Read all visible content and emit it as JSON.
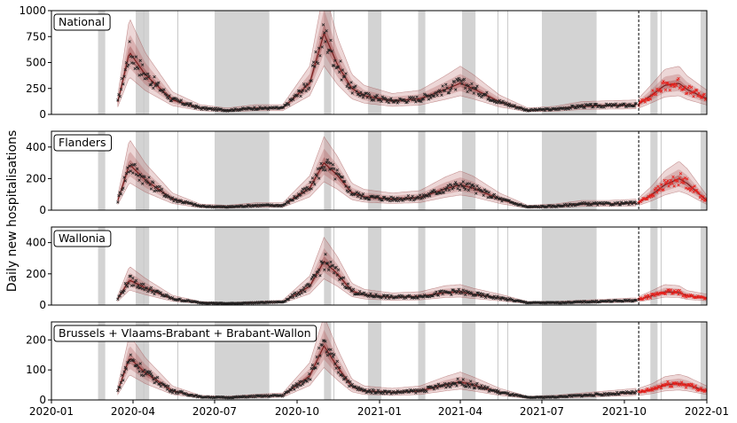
{
  "chart_data": {
    "type": "line",
    "ylabel": "Daily new hospitalisations",
    "x_ticks": [
      "2020-01",
      "2020-04",
      "2020-07",
      "2020-10",
      "2021-01",
      "2021-04",
      "2021-07",
      "2021-10",
      "2022-01"
    ],
    "x_range": [
      "2020-01-01",
      "2022-01-01"
    ],
    "vertical_line_date": "2021-10-17",
    "shaded_periods": [
      [
        "2020-02-22",
        "2020-03-01"
      ],
      [
        "2020-04-04",
        "2020-04-19"
      ],
      [
        "2020-07-01",
        "2020-08-31"
      ],
      [
        "2020-10-31",
        "2020-11-08"
      ],
      [
        "2020-12-19",
        "2021-01-03"
      ],
      [
        "2021-02-13",
        "2021-02-21"
      ],
      [
        "2021-04-03",
        "2021-04-18"
      ],
      [
        "2021-07-01",
        "2021-08-31"
      ],
      [
        "2021-10-30",
        "2021-11-07"
      ],
      [
        "2021-12-25",
        "2022-01-01"
      ]
    ],
    "single_days": [
      "2020-04-13",
      "2020-05-21",
      "2020-11-11",
      "2021-05-13",
      "2021-05-24",
      "2021-11-11"
    ],
    "panels": [
      {
        "label": "National",
        "ylim": [
          0,
          1000
        ],
        "yticks": [
          0,
          250,
          500,
          750,
          1000
        ],
        "series": [
          {
            "x": [
              "2020-03-15",
              "2020-03-28",
              "2020-04-15",
              "2020-05-15",
              "2020-06-15",
              "2020-07-15",
              "2020-08-15",
              "2020-09-15",
              "2020-10-15",
              "2020-10-31",
              "2020-11-15",
              "2020-12-01",
              "2020-12-15",
              "2021-01-15",
              "2021-02-15",
              "2021-03-15",
              "2021-04-01",
              "2021-04-15",
              "2021-05-15",
              "2021-06-15",
              "2021-07-15",
              "2021-08-15",
              "2021-09-15",
              "2021-10-15"
            ],
            "y": [
              120,
              600,
              380,
              140,
              60,
              40,
              60,
              60,
              300,
              780,
              480,
              250,
              180,
              130,
              150,
              240,
              300,
              250,
              120,
              40,
              50,
              80,
              85,
              90
            ]
          },
          {
            "x": [
              "2021-10-17",
              "2021-11-01",
              "2021-11-15",
              "2021-12-01",
              "2021-12-10",
              "2022-01-01"
            ],
            "y": [
              100,
              190,
              280,
              300,
              240,
              150
            ]
          }
        ]
      },
      {
        "label": "Flanders",
        "ylim": [
          0,
          500
        ],
        "yticks": [
          0,
          200,
          400
        ],
        "series": [
          {
            "x": [
              "2020-03-15",
              "2020-03-28",
              "2020-04-15",
              "2020-05-15",
              "2020-06-15",
              "2020-07-15",
              "2020-08-15",
              "2020-09-15",
              "2020-10-15",
              "2020-10-31",
              "2020-11-15",
              "2020-12-01",
              "2020-12-15",
              "2021-01-15",
              "2021-02-15",
              "2021-03-15",
              "2021-04-01",
              "2021-04-15",
              "2021-05-15",
              "2021-06-15",
              "2021-07-15",
              "2021-08-15",
              "2021-09-15",
              "2021-10-15"
            ],
            "y": [
              60,
              290,
              190,
              70,
              25,
              20,
              30,
              30,
              140,
              300,
              220,
              110,
              85,
              70,
              80,
              135,
              160,
              140,
              70,
              20,
              25,
              40,
              40,
              45
            ]
          },
          {
            "x": [
              "2021-10-17",
              "2021-11-01",
              "2021-11-15",
              "2021-12-01",
              "2021-12-10",
              "2022-01-01"
            ],
            "y": [
              50,
              100,
              160,
              200,
              170,
              60
            ]
          }
        ]
      },
      {
        "label": "Wallonia",
        "ylim": [
          0,
          500
        ],
        "yticks": [
          0,
          200,
          400
        ],
        "series": [
          {
            "x": [
              "2020-03-15",
              "2020-03-28",
              "2020-04-15",
              "2020-05-15",
              "2020-06-15",
              "2020-07-15",
              "2020-08-15",
              "2020-09-15",
              "2020-10-15",
              "2020-10-31",
              "2020-11-15",
              "2020-12-01",
              "2020-12-15",
              "2021-01-15",
              "2021-02-15",
              "2021-03-15",
              "2021-04-01",
              "2021-04-15",
              "2021-05-15",
              "2021-06-15",
              "2021-07-15",
              "2021-08-15",
              "2021-09-15",
              "2021-10-15"
            ],
            "y": [
              40,
              160,
              110,
              40,
              15,
              10,
              15,
              20,
              120,
              280,
              200,
              90,
              65,
              50,
              55,
              80,
              85,
              70,
              45,
              15,
              15,
              20,
              25,
              30
            ]
          },
          {
            "x": [
              "2021-10-17",
              "2021-11-01",
              "2021-11-15",
              "2021-12-01",
              "2021-12-10",
              "2022-01-01"
            ],
            "y": [
              35,
              60,
              85,
              80,
              60,
              45
            ]
          }
        ]
      },
      {
        "label": "Brussels + Vlaams-Brabant + Brabant-Wallon",
        "ylim": [
          0,
          260
        ],
        "yticks": [
          0,
          100,
          200
        ],
        "series": [
          {
            "x": [
              "2020-03-15",
              "2020-03-28",
              "2020-04-15",
              "2020-05-15",
              "2020-06-15",
              "2020-07-15",
              "2020-08-15",
              "2020-09-15",
              "2020-10-15",
              "2020-10-31",
              "2020-11-15",
              "2020-12-01",
              "2020-12-15",
              "2021-01-15",
              "2021-02-15",
              "2021-03-15",
              "2021-04-01",
              "2021-04-15",
              "2021-05-15",
              "2021-06-15",
              "2021-07-15",
              "2021-08-15",
              "2021-09-15",
              "2021-10-15"
            ],
            "y": [
              30,
              140,
              90,
              30,
              10,
              8,
              12,
              15,
              80,
              180,
              110,
              45,
              30,
              25,
              30,
              50,
              60,
              50,
              25,
              8,
              10,
              15,
              20,
              25
            ]
          },
          {
            "x": [
              "2021-10-17",
              "2021-11-01",
              "2021-11-15",
              "2021-12-01",
              "2021-12-10",
              "2022-01-01"
            ],
            "y": [
              25,
              35,
              50,
              55,
              50,
              30
            ]
          }
        ]
      }
    ]
  }
}
